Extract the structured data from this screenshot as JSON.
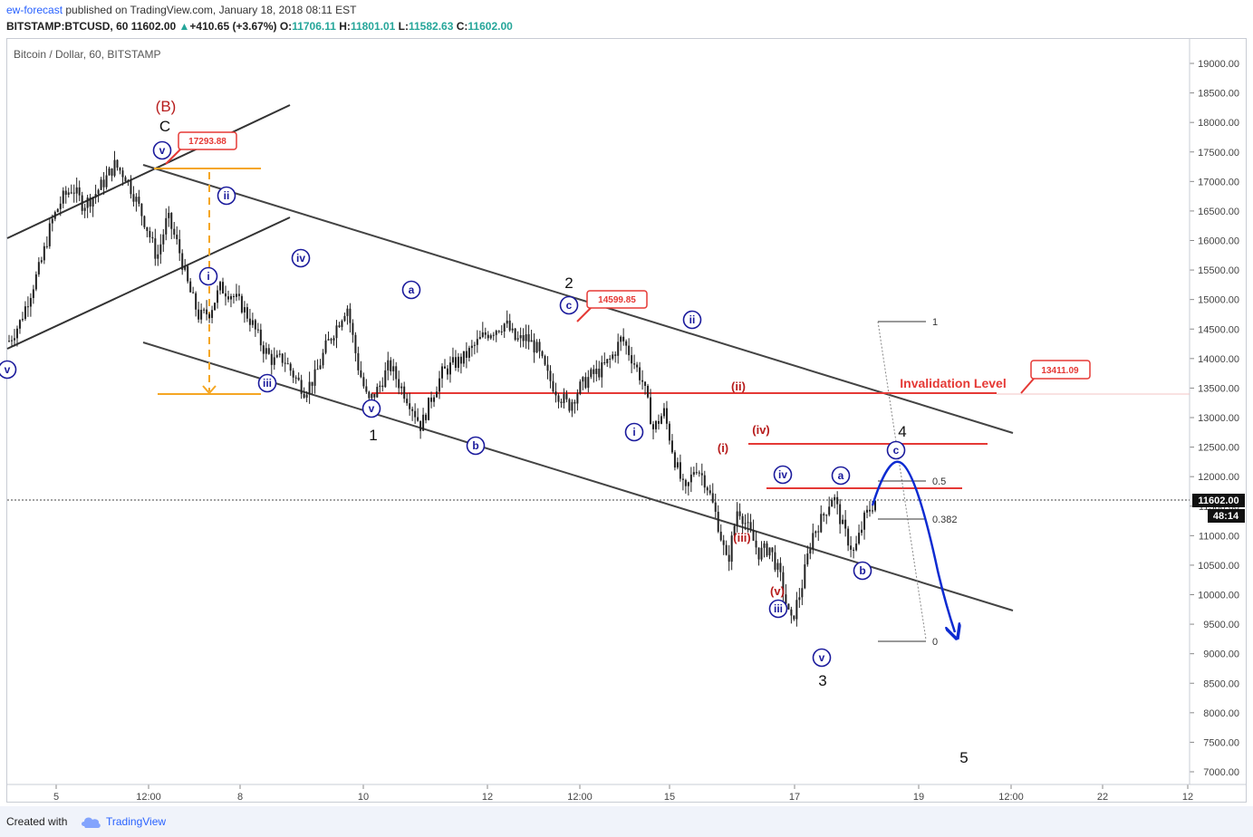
{
  "header": {
    "author": "ew-forecast",
    "published_text": "published on TradingView.com, January 18, 2018 08:11 EST",
    "symbol": "BITSTAMP:BTCUSD, 60",
    "last": "11602.00",
    "change_icon": "triangle-up-icon",
    "change": "+410.65 (+3.67%)",
    "o_label": "O:",
    "o_value": "11706.11",
    "h_label": "H:",
    "h_value": "11801.01",
    "l_label": "L:",
    "l_value": "11582.63",
    "c_label": "C:",
    "c_value": "11602.00"
  },
  "footer": {
    "created_with": "Created with",
    "brand": "TradingView",
    "brand_icon": "tradingview-cloud-icon"
  },
  "colors": {
    "up": "#26a69a",
    "brand": "#2962ff",
    "wave_blue": "#1a1a9c",
    "wave_red": "#b71c1c",
    "level_red": "#e53935",
    "orange": "#f5a623",
    "projection": "#0d2bd1",
    "channel": "#333333"
  },
  "chart_data": {
    "type": "candlestick",
    "title": "Bitcoin / Dollar, 60, BITSTAMP",
    "ylim": [
      6750,
      19500
    ],
    "y_ticks": [
      "19000.00",
      "18500.00",
      "18000.00",
      "17500.00",
      "17000.00",
      "16500.00",
      "16000.00",
      "15500.00",
      "15000.00",
      "14500.00",
      "14000.00",
      "13500.00",
      "13000.00",
      "12500.00",
      "12000.00",
      "11500.00",
      "11000.00",
      "10500.00",
      "10000.00",
      "9500.00",
      "9000.00",
      "8500.00",
      "8000.00",
      "7500.00",
      "7000.00"
    ],
    "x_ticks": [
      "5",
      "12:00",
      "8",
      "10",
      "12",
      "12:00",
      "15",
      "17",
      "19",
      "12:00",
      "22",
      "12"
    ],
    "last_price": "11602.00",
    "countdown": "48:14",
    "price_callouts": [
      "17293.88",
      "14599.85",
      "13411.09"
    ],
    "invalidation_label": "Invalidation Level",
    "fib_labels": [
      "1",
      "0.5",
      "0.382",
      "0"
    ],
    "wave_labels": {
      "major": [
        "(B)",
        "C",
        "1",
        "2",
        "3",
        "4",
        "5"
      ],
      "minor_blue": [
        "v",
        "v",
        "ii",
        "i",
        "iv",
        "iii",
        "v",
        "a",
        "b",
        "c",
        "i",
        "ii",
        "iv",
        "iii",
        "v",
        "a",
        "b",
        "c"
      ],
      "minor_red": [
        "(ii)",
        "(i)",
        "(iv)",
        "(iii)",
        "(v)"
      ]
    },
    "price_path": [
      [
        0,
        14300
      ],
      [
        2,
        14600
      ],
      [
        4,
        15100
      ],
      [
        6,
        15600
      ],
      [
        8,
        16300
      ],
      [
        10,
        16700
      ],
      [
        12,
        16900
      ],
      [
        14,
        16600
      ],
      [
        16,
        16750
      ],
      [
        18,
        17000
      ],
      [
        20,
        17280
      ],
      [
        22,
        17100
      ],
      [
        24,
        16700
      ],
      [
        26,
        16250
      ],
      [
        28,
        15700
      ],
      [
        30,
        16400
      ],
      [
        32,
        15900
      ],
      [
        34,
        15200
      ],
      [
        36,
        14700
      ],
      [
        38,
        14800
      ],
      [
        40,
        15200
      ],
      [
        42,
        15100
      ],
      [
        44,
        14900
      ],
      [
        46,
        14600
      ],
      [
        48,
        14200
      ],
      [
        50,
        13950
      ],
      [
        52,
        14000
      ],
      [
        54,
        13700
      ],
      [
        56,
        13450
      ],
      [
        58,
        13700
      ],
      [
        60,
        14200
      ],
      [
        62,
        14550
      ],
      [
        64,
        14900
      ],
      [
        66,
        13900
      ],
      [
        68,
        13250
      ],
      [
        70,
        13500
      ],
      [
        72,
        13900
      ],
      [
        74,
        13550
      ],
      [
        76,
        13250
      ],
      [
        78,
        12850
      ],
      [
        80,
        13350
      ],
      [
        82,
        13750
      ],
      [
        84,
        13900
      ],
      [
        86,
        14000
      ],
      [
        88,
        14200
      ],
      [
        90,
        14400
      ],
      [
        92,
        14500
      ],
      [
        94,
        14600
      ],
      [
        96,
        14300
      ],
      [
        98,
        14350
      ],
      [
        100,
        14150
      ],
      [
        102,
        13700
      ],
      [
        104,
        13400
      ],
      [
        106,
        13200
      ],
      [
        108,
        13500
      ],
      [
        110,
        13700
      ],
      [
        112,
        13800
      ],
      [
        114,
        14000
      ],
      [
        116,
        14350
      ],
      [
        118,
        14000
      ],
      [
        120,
        13600
      ],
      [
        122,
        12800
      ],
      [
        124,
        13100
      ],
      [
        126,
        12300
      ],
      [
        128,
        11700
      ],
      [
        130,
        12200
      ],
      [
        132,
        11900
      ],
      [
        134,
        11300
      ],
      [
        136,
        10500
      ],
      [
        138,
        11500
      ],
      [
        140,
        11100
      ],
      [
        142,
        10700
      ],
      [
        144,
        10800
      ],
      [
        146,
        10300
      ],
      [
        148,
        9500
      ],
      [
        150,
        10100
      ],
      [
        152,
        11000
      ],
      [
        154,
        11300
      ],
      [
        156,
        11700
      ],
      [
        158,
        11100
      ],
      [
        160,
        10700
      ],
      [
        162,
        11300
      ],
      [
        164,
        11600
      ]
    ]
  }
}
